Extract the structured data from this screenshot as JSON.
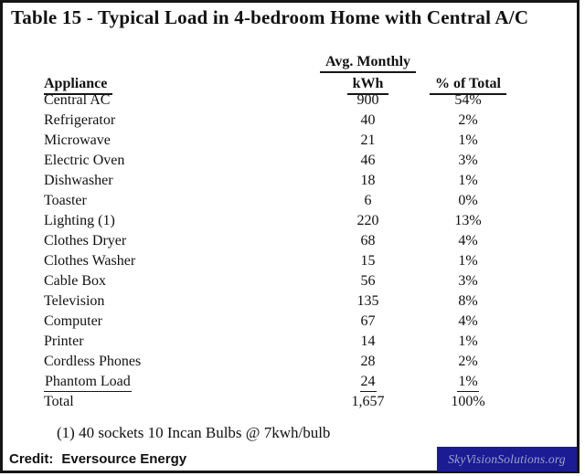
{
  "title": "Table 15 - Typical Load in 4-bedroom Home with Central A/C",
  "table": {
    "group_header": "Avg. Monthly",
    "columns": [
      "Appliance",
      "kWh",
      "% of Total"
    ],
    "rows": [
      {
        "name": "Central AC",
        "kwh": "900",
        "pct": "54%"
      },
      {
        "name": "Refrigerator",
        "kwh": "40",
        "pct": "2%"
      },
      {
        "name": "Microwave",
        "kwh": "21",
        "pct": "1%"
      },
      {
        "name": "Electric Oven",
        "kwh": "46",
        "pct": "3%"
      },
      {
        "name": "Dishwasher",
        "kwh": "18",
        "pct": "1%"
      },
      {
        "name": "Toaster",
        "kwh": "6",
        "pct": "0%"
      },
      {
        "name": "Lighting (1)",
        "kwh": "220",
        "pct": "13%"
      },
      {
        "name": "Clothes Dryer",
        "kwh": "68",
        "pct": "4%"
      },
      {
        "name": "Clothes Washer",
        "kwh": "15",
        "pct": "1%"
      },
      {
        "name": "Cable Box",
        "kwh": "56",
        "pct": "3%"
      },
      {
        "name": "Television",
        "kwh": "135",
        "pct": "8%"
      },
      {
        "name": "Computer",
        "kwh": "67",
        "pct": "4%"
      },
      {
        "name": "Printer",
        "kwh": "14",
        "pct": "1%"
      },
      {
        "name": "Cordless Phones",
        "kwh": "28",
        "pct": "2%"
      },
      {
        "name": "Phantom Load",
        "kwh": "24",
        "pct": "1%",
        "underline": true
      },
      {
        "name": "Total",
        "kwh": "1,657",
        "pct": "100%",
        "total": true
      }
    ]
  },
  "footnote": "(1) 40 sockets 10 Incan Bulbs @ 7kwh/bulb",
  "credit": {
    "label": "Credit:",
    "value": "Eversource Energy"
  },
  "watermark": {
    "text": "SkyVisionSolutions.org",
    "background_color": "#1b1b94",
    "text_color": "#9fa3c9"
  },
  "colors": {
    "border": "#161616",
    "text": "#111111",
    "background": "#ffffff"
  }
}
